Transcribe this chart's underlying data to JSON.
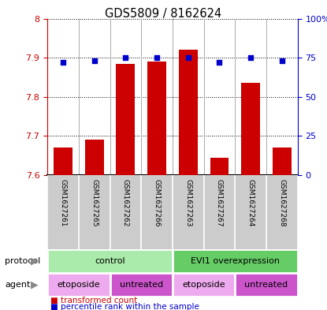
{
  "title": "GDS5809 / 8162624",
  "samples": [
    "GSM1627261",
    "GSM1627265",
    "GSM1627262",
    "GSM1627266",
    "GSM1627263",
    "GSM1627267",
    "GSM1627264",
    "GSM1627268"
  ],
  "transformed_counts": [
    7.67,
    7.69,
    7.885,
    7.89,
    7.92,
    7.645,
    7.835,
    7.67
  ],
  "percentile_ranks": [
    72,
    73,
    75,
    75,
    75,
    72,
    75,
    73
  ],
  "ylim_left": [
    7.6,
    8.0
  ],
  "ylim_right": [
    0,
    100
  ],
  "yticks_left": [
    7.6,
    7.7,
    7.8,
    7.9,
    8.0
  ],
  "ytick_labels_left": [
    "7.6",
    "7.7",
    "7.8",
    "7.9",
    "8"
  ],
  "yticks_right": [
    0,
    25,
    50,
    75,
    100
  ],
  "ytick_labels_right": [
    "0",
    "25",
    "50",
    "75",
    "100%"
  ],
  "bar_color": "#cc0000",
  "dot_color": "#0000cc",
  "protocol_groups": [
    {
      "label": "control",
      "start": 0,
      "end": 4,
      "color": "#aaeaaa"
    },
    {
      "label": "EVI1 overexpression",
      "start": 4,
      "end": 8,
      "color": "#66cc66"
    }
  ],
  "agent_groups": [
    {
      "label": "etoposide",
      "start": 0,
      "end": 2,
      "color": "#eeaaee"
    },
    {
      "label": "untreated",
      "start": 2,
      "end": 4,
      "color": "#cc55cc"
    },
    {
      "label": "etoposide",
      "start": 4,
      "end": 6,
      "color": "#eeaaee"
    },
    {
      "label": "untreated",
      "start": 6,
      "end": 8,
      "color": "#cc55cc"
    }
  ],
  "sample_bg_color": "#cccccc",
  "legend_tc_label": "transformed count",
  "legend_pr_label": "percentile rank within the sample",
  "row_label_protocol": "protocol",
  "row_label_agent": "agent",
  "background_color": "#ffffff"
}
